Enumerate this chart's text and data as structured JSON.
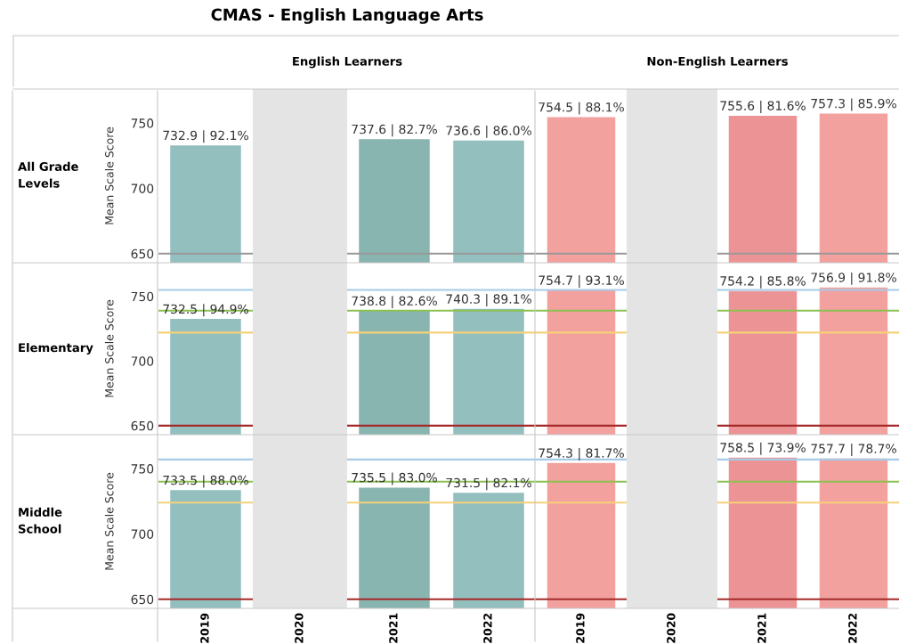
{
  "chart_data": [
    {
      "type": "bar",
      "title": "CMAS - English Language Arts",
      "subtitle": "English Learners",
      "ylabel": "Mean Scale Score",
      "annotations": [
        "All Grade\nLevels"
      ],
      "categories": [
        "2019",
        "2020",
        "2021",
        "2022"
      ],
      "values": [
        732.9,
        null,
        737.6,
        736.6
      ],
      "colors": [
        "#93bfbf",
        "#93bfbf",
        "#89b5b0",
        "#93bfbf"
      ],
      "value_labels": [
        "732.9 | 92.1%",
        null,
        "737.6 | 82.7%",
        "736.6 | 86.0%"
      ],
      "ylim": [
        643,
        776
      ],
      "yticks": [
        650,
        700,
        750
      ],
      "tick_labels": "y",
      "grid": false,
      "legend": false,
      "ref_lines": [
        {
          "axis": "y",
          "value": 650,
          "color": "#999999"
        }
      ],
      "bands": [
        {
          "axis": "x",
          "from": "2020",
          "to": "2020",
          "color": "#e4e4e4"
        }
      ]
    },
    {
      "type": "bar",
      "subtitle": "Non-English Learners",
      "categories": [
        "2019",
        "2020",
        "2021",
        "2022"
      ],
      "values": [
        754.5,
        null,
        755.6,
        757.3
      ],
      "colors": [
        "#f2a19f",
        "#f2a19f",
        "#ec9395",
        "#f2a19f"
      ],
      "value_labels": [
        "754.5 | 88.1%",
        null,
        "755.6 | 81.6%",
        "757.3 | 85.9%"
      ],
      "ylim": [
        643,
        776
      ],
      "yticks": [
        650,
        700,
        750
      ],
      "tick_labels": false,
      "grid": false,
      "legend": false,
      "ref_lines": [
        {
          "axis": "y",
          "value": 650,
          "color": "#999999"
        }
      ],
      "bands": [
        {
          "axis": "x",
          "from": "2020",
          "to": "2020",
          "color": "#e4e4e4"
        }
      ]
    },
    {
      "type": "bar",
      "ylabel": "Mean Scale Score",
      "annotations": [
        "Elementary"
      ],
      "categories": [
        "2019",
        "2020",
        "2021",
        "2022"
      ],
      "values": [
        732.5,
        null,
        738.8,
        740.3
      ],
      "colors": [
        "#93bfbf",
        "#93bfbf",
        "#89b5b0",
        "#93bfbf"
      ],
      "value_labels": [
        "732.5 | 94.9%",
        null,
        "738.8 | 82.6%",
        "740.3 | 89.1%"
      ],
      "ylim": [
        643,
        776
      ],
      "yticks": [
        650,
        700,
        750
      ],
      "tick_labels": "y",
      "grid": false,
      "legend": false,
      "ref_lines": [
        {
          "axis": "y",
          "value": 650,
          "color": "#a52a2a"
        },
        {
          "axis": "y",
          "value": 722,
          "color": "#f5d27a"
        },
        {
          "axis": "y",
          "value": 739,
          "color": "#8cc152"
        },
        {
          "axis": "y",
          "value": 755,
          "color": "#a6cbe8"
        }
      ],
      "bands": [
        {
          "axis": "x",
          "from": "2020",
          "to": "2020",
          "color": "#e4e4e4"
        }
      ]
    },
    {
      "type": "bar",
      "categories": [
        "2019",
        "2020",
        "2021",
        "2022"
      ],
      "values": [
        754.7,
        null,
        754.2,
        756.9
      ],
      "colors": [
        "#f2a19f",
        "#f2a19f",
        "#ec9395",
        "#f2a19f"
      ],
      "value_labels": [
        "754.7 | 93.1%",
        null,
        "754.2 | 85.8%",
        "756.9 | 91.8%"
      ],
      "ylim": [
        643,
        776
      ],
      "yticks": [
        650,
        700,
        750
      ],
      "tick_labels": false,
      "grid": false,
      "legend": false,
      "ref_lines": [
        {
          "axis": "y",
          "value": 650,
          "color": "#a52a2a"
        },
        {
          "axis": "y",
          "value": 722,
          "color": "#f5d27a"
        },
        {
          "axis": "y",
          "value": 739,
          "color": "#8cc152"
        },
        {
          "axis": "y",
          "value": 755,
          "color": "#a6cbe8"
        }
      ],
      "bands": [
        {
          "axis": "x",
          "from": "2020",
          "to": "2020",
          "color": "#e4e4e4"
        }
      ]
    },
    {
      "type": "bar",
      "ylabel": "Mean Scale Score",
      "annotations": [
        "Middle\nSchool"
      ],
      "categories": [
        "2019",
        "2020",
        "2021",
        "2022"
      ],
      "values": [
        733.5,
        null,
        735.5,
        731.5
      ],
      "colors": [
        "#93bfbf",
        "#93bfbf",
        "#89b5b0",
        "#93bfbf"
      ],
      "value_labels": [
        "733.5 | 88.0%",
        null,
        "735.5 | 83.0%",
        "731.5 | 82.1%"
      ],
      "ylim": [
        643,
        776
      ],
      "yticks": [
        650,
        700,
        750
      ],
      "grid": false,
      "legend": false,
      "ref_lines": [
        {
          "axis": "y",
          "value": 650,
          "color": "#a52a2a"
        },
        {
          "axis": "y",
          "value": 724,
          "color": "#f5d27a"
        },
        {
          "axis": "y",
          "value": 740,
          "color": "#8cc152"
        },
        {
          "axis": "y",
          "value": 757,
          "color": "#a6cbe8"
        }
      ],
      "bands": [
        {
          "axis": "x",
          "from": "2020",
          "to": "2020",
          "color": "#e4e4e4"
        }
      ]
    },
    {
      "type": "bar",
      "categories": [
        "2019",
        "2020",
        "2021",
        "2022"
      ],
      "values": [
        754.3,
        null,
        758.5,
        757.7
      ],
      "colors": [
        "#f2a19f",
        "#f2a19f",
        "#ec9395",
        "#f2a19f"
      ],
      "value_labels": [
        "754.3 | 81.7%",
        null,
        "758.5 | 73.9%",
        "757.7 | 78.7%"
      ],
      "ylim": [
        643,
        776
      ],
      "yticks": [
        650,
        700,
        750
      ],
      "tick_labels": "x",
      "grid": false,
      "legend": false,
      "ref_lines": [
        {
          "axis": "y",
          "value": 650,
          "color": "#a52a2a"
        },
        {
          "axis": "y",
          "value": 724,
          "color": "#f5d27a"
        },
        {
          "axis": "y",
          "value": 740,
          "color": "#8cc152"
        },
        {
          "axis": "y",
          "value": 757,
          "color": "#a6cbe8"
        }
      ],
      "bands": [
        {
          "axis": "x",
          "from": "2020",
          "to": "2020",
          "color": "#e4e4e4"
        }
      ]
    }
  ]
}
